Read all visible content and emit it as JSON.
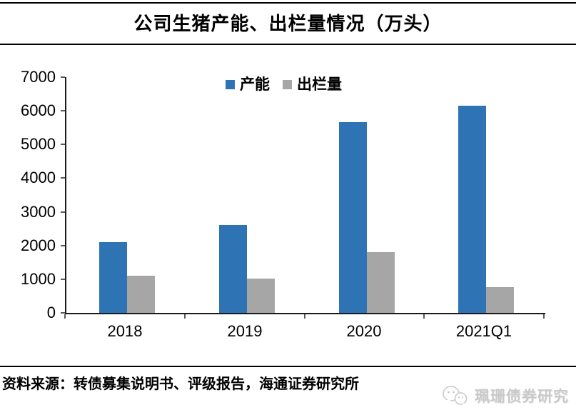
{
  "title": "公司生猪产能、出栏量情况（万头）",
  "source_note": "资料来源：转债募集说明书、评级报告，海通证券研究所",
  "watermark": {
    "icon": "wechat-icon",
    "label": "珮珊债券研究"
  },
  "colors": {
    "capacity_blue": "#2E74B5",
    "slaughter_gray": "#A6A6A6",
    "axis": "#1a1a1a",
    "watermark_gray": "#c9c9c9"
  },
  "chart_data": {
    "type": "bar",
    "title": "公司生猪产能、出栏量情况（万头）",
    "categories": [
      "2018",
      "2019",
      "2020",
      "2021Q1"
    ],
    "series": [
      {
        "name": "产能",
        "color": "#2E74B5",
        "values": [
          2100,
          2600,
          5660,
          6160
        ]
      },
      {
        "name": "出栏量",
        "color": "#A6A6A6",
        "values": [
          1100,
          1025,
          1810,
          772
        ]
      }
    ],
    "xlabel": "",
    "ylabel": "",
    "ylim": [
      0,
      7000
    ],
    "yticks": [
      0,
      1000,
      2000,
      3000,
      4000,
      5000,
      6000,
      7000
    ],
    "grid": false,
    "legend_position": "top-center"
  }
}
